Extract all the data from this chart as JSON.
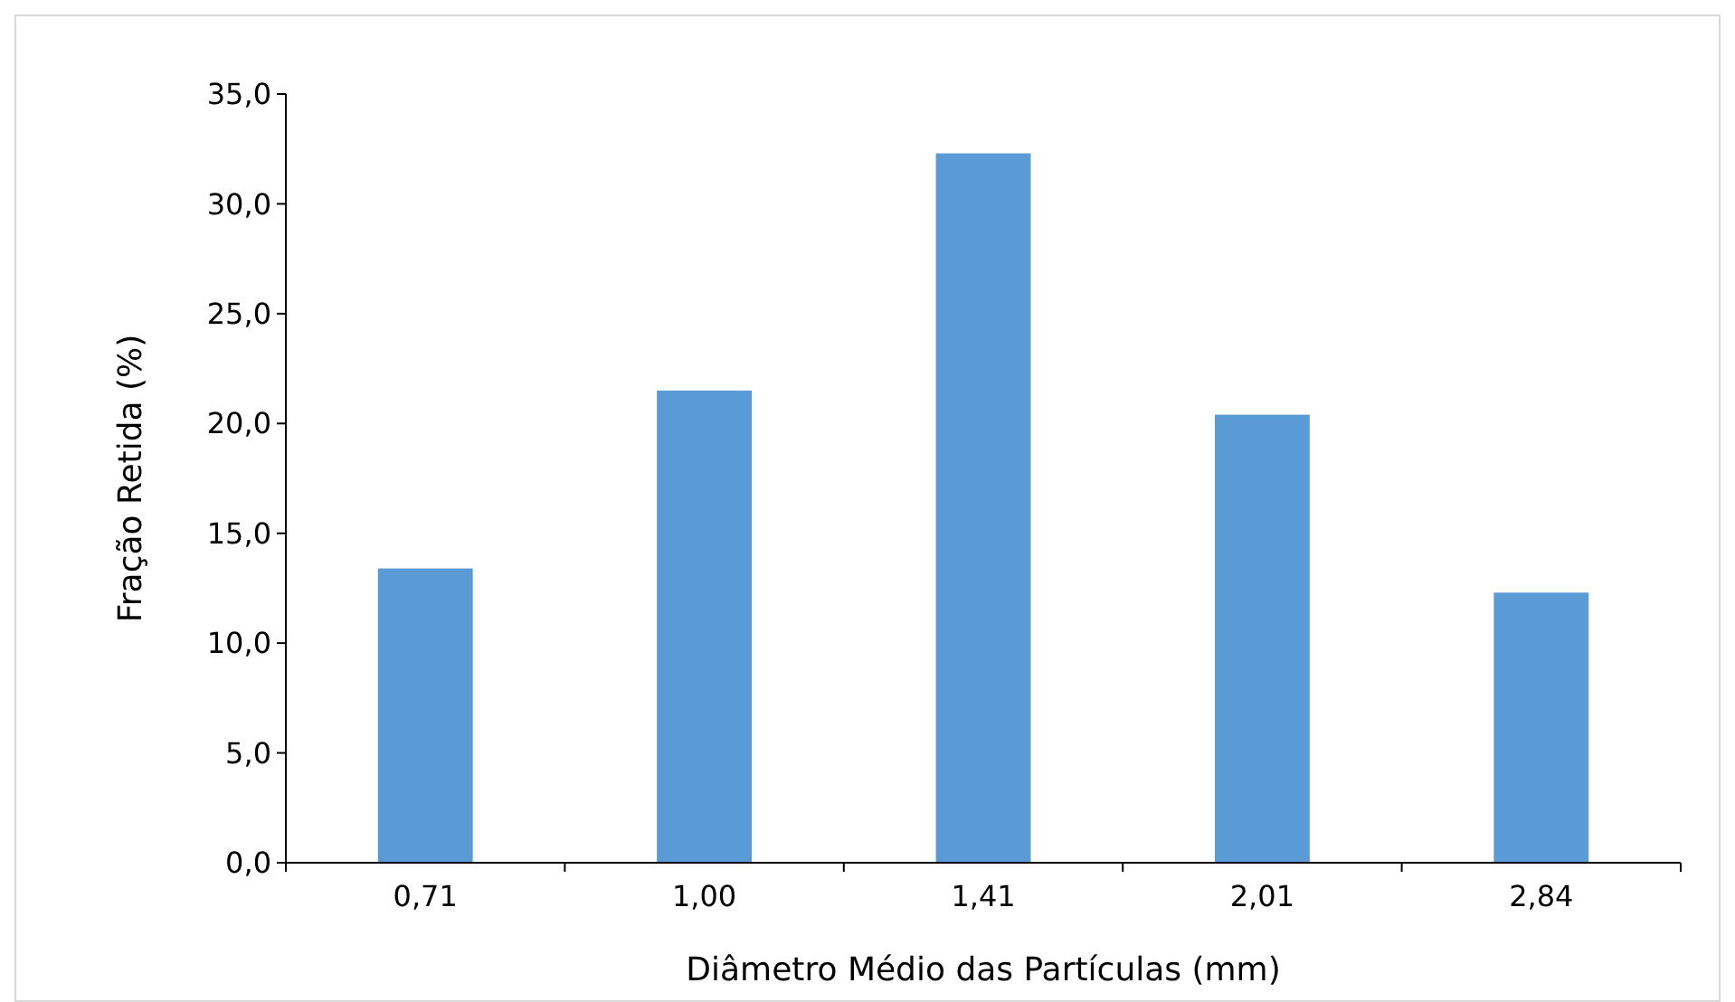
{
  "chart_data": {
    "type": "bar",
    "xlabel": "Diâmetro Médio das Partículas (mm)",
    "ylabel": "Fração Retida (%)",
    "categories": [
      "0,71",
      "1,00",
      "1,41",
      "2,01",
      "2,84"
    ],
    "values": [
      13.4,
      21.5,
      32.3,
      20.4,
      12.3
    ],
    "color": "#5b9bd5",
    "ylim": [
      0,
      35
    ],
    "yticks": [
      {
        "value": 0,
        "label": "0,0"
      },
      {
        "value": 5,
        "label": "5,0"
      },
      {
        "value": 10,
        "label": "10,0"
      },
      {
        "value": 15,
        "label": "15,0"
      },
      {
        "value": 20,
        "label": "20,0"
      },
      {
        "value": 25,
        "label": "25,0"
      },
      {
        "value": 30,
        "label": "30,0"
      },
      {
        "value": 35,
        "label": "35,0"
      }
    ],
    "grid": false
  }
}
